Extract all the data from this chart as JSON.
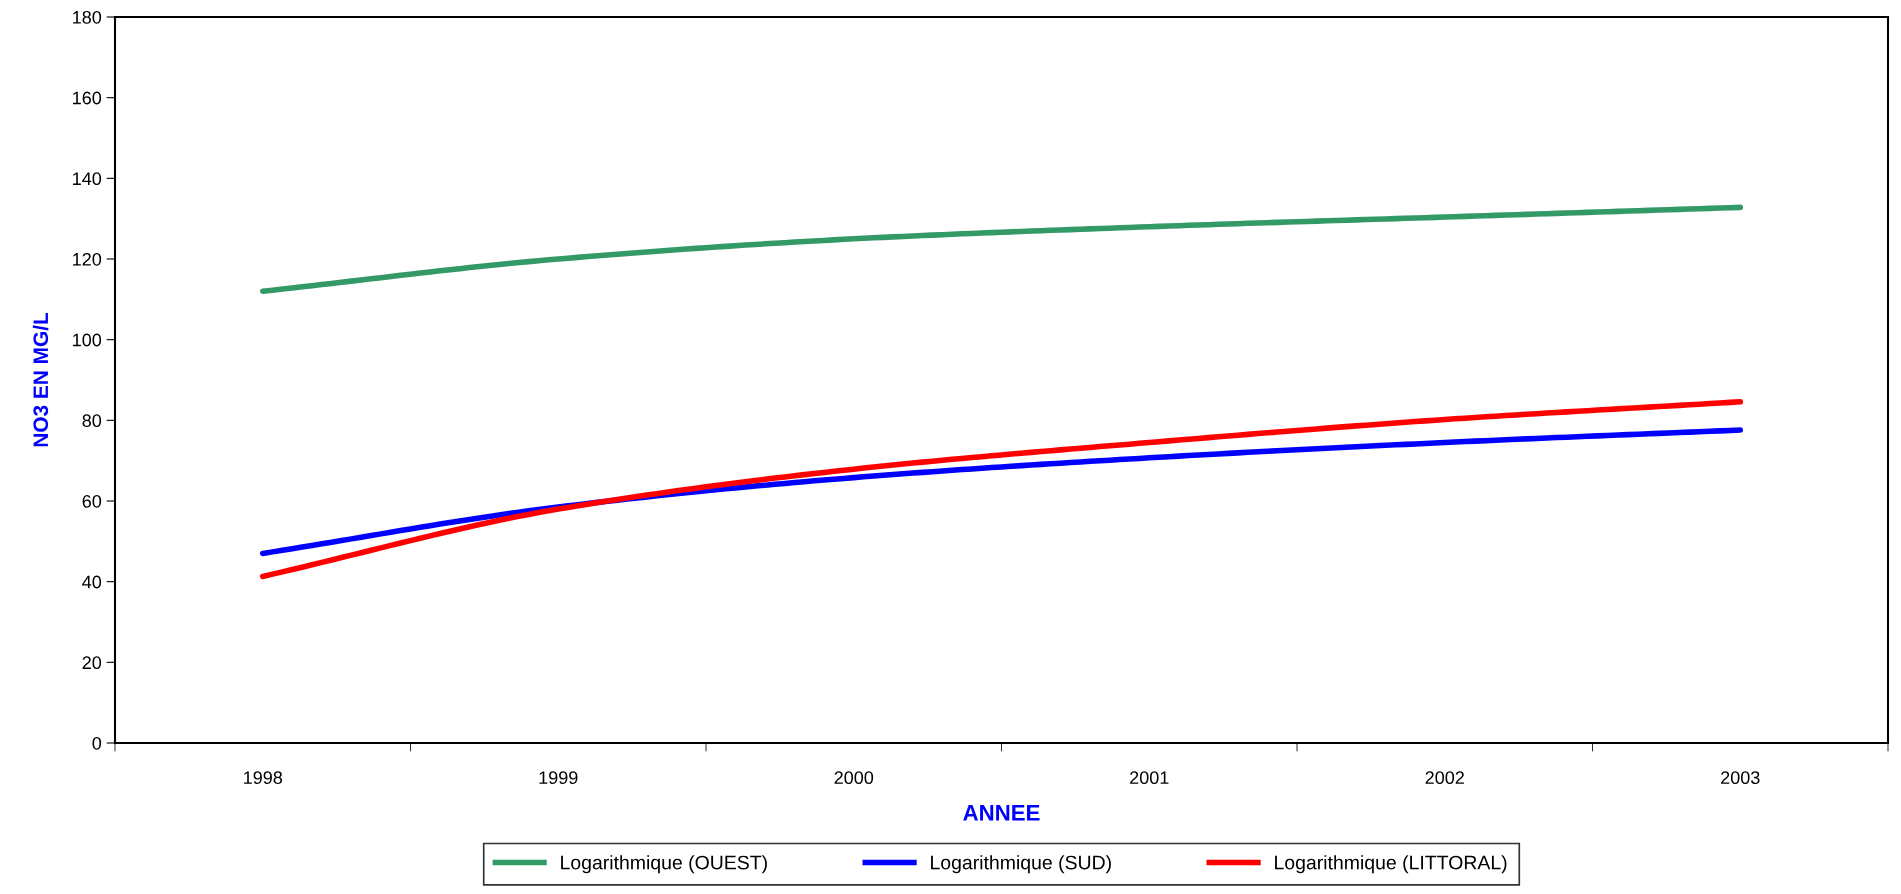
{
  "chart_data": {
    "type": "line",
    "xlabel": "ANNEE",
    "ylabel": "NO3 EN MG/L",
    "categories": [
      "1998",
      "1999",
      "2000",
      "2001",
      "2002",
      "2003"
    ],
    "series": [
      {
        "name": "Logarithmique (OUEST)",
        "color": "#339966",
        "values": [
          112,
          120,
          125,
          128,
          130.4,
          132.8
        ]
      },
      {
        "name": "Logarithmique (SUD)",
        "color": "#0000ff",
        "values": [
          47,
          58.5,
          65.8,
          70.7,
          74.5,
          77.6
        ]
      },
      {
        "name": "Logarithmique (LITTORAL)",
        "color": "#ff0000",
        "values": [
          41.3,
          58,
          67.9,
          74.5,
          80.2,
          84.6
        ]
      }
    ],
    "ylim": [
      0,
      180
    ],
    "yticks": [
      0,
      20,
      40,
      60,
      80,
      100,
      120,
      140,
      160,
      180
    ],
    "grid": false,
    "legend": "bottom",
    "marker": "none",
    "line_style": "solid"
  }
}
